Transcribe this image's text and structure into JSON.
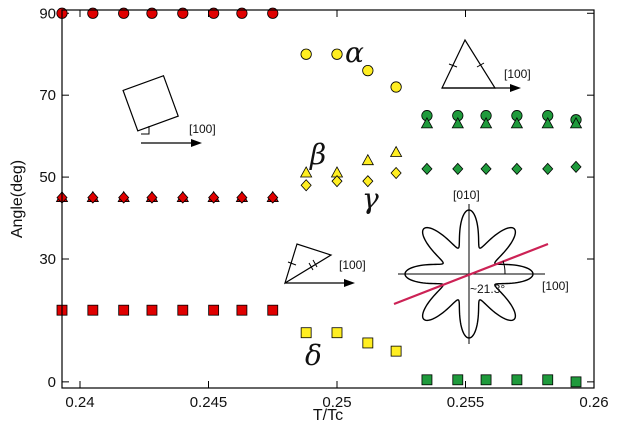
{
  "chart_data": {
    "type": "scatter",
    "xlabel": "T/Tc",
    "ylabel": "Angle(deg)",
    "xlim": [
      0.2393,
      0.26
    ],
    "ylim": [
      -1.5,
      90.8
    ],
    "xticks": [
      0.24,
      0.245,
      0.25,
      0.255,
      0.26
    ],
    "xtick_labels": [
      "0.24",
      "0.245",
      "0.25",
      "0.255",
      "0.26"
    ],
    "yticks": [
      0,
      30,
      50,
      70,
      90
    ],
    "ytick_labels": [
      "0",
      "30",
      "50",
      "70",
      "90"
    ],
    "grid": false,
    "colors": {
      "red": "#e00000",
      "yellow": "#ffee22",
      "green": "#1f9a3c",
      "curve": "#cc2255"
    },
    "series": [
      {
        "color": "red",
        "marker": "circle",
        "x": [
          0.2393,
          0.2405,
          0.2417,
          0.2428,
          0.244,
          0.2452,
          0.2463,
          0.2475
        ],
        "y": [
          90,
          90,
          90,
          90,
          90,
          90,
          90,
          90
        ]
      },
      {
        "color": "red",
        "marker": "triangle",
        "x": [
          0.2393,
          0.2405,
          0.2417,
          0.2428,
          0.244,
          0.2452,
          0.2463,
          0.2475
        ],
        "y": [
          45,
          45,
          45,
          45,
          45,
          45,
          45,
          45
        ]
      },
      {
        "color": "red",
        "marker": "diamond",
        "x": [
          0.2393,
          0.2405,
          0.2417,
          0.2428,
          0.244,
          0.2452,
          0.2463,
          0.2475
        ],
        "y": [
          45,
          45,
          45,
          45,
          45,
          45,
          45,
          45
        ]
      },
      {
        "color": "red",
        "marker": "square",
        "x": [
          0.2393,
          0.2405,
          0.2417,
          0.2428,
          0.244,
          0.2452,
          0.2463,
          0.2475
        ],
        "y": [
          17.5,
          17.5,
          17.5,
          17.5,
          17.5,
          17.5,
          17.5,
          17.5
        ]
      },
      {
        "color": "yellow",
        "marker": "circle",
        "x": [
          0.2488,
          0.25,
          0.2512,
          0.2523
        ],
        "y": [
          80,
          80,
          76,
          72
        ]
      },
      {
        "color": "yellow",
        "marker": "triangle",
        "x": [
          0.2488,
          0.25,
          0.2512,
          0.2523
        ],
        "y": [
          51,
          51,
          54,
          56
        ]
      },
      {
        "color": "yellow",
        "marker": "diamond",
        "x": [
          0.2488,
          0.25,
          0.2512,
          0.2523
        ],
        "y": [
          48,
          49,
          49,
          51
        ]
      },
      {
        "color": "yellow",
        "marker": "square",
        "x": [
          0.2488,
          0.25,
          0.2512,
          0.2523
        ],
        "y": [
          12,
          12,
          9.5,
          7.5
        ]
      },
      {
        "color": "green",
        "marker": "circle",
        "x": [
          0.2535,
          0.2547,
          0.2558,
          0.257,
          0.2582,
          0.2593
        ],
        "y": [
          65,
          65,
          65,
          65,
          65,
          64
        ]
      },
      {
        "color": "green",
        "marker": "triangle",
        "x": [
          0.2535,
          0.2547,
          0.2558,
          0.257,
          0.2582,
          0.2593
        ],
        "y": [
          63,
          63,
          63,
          63,
          63,
          63
        ]
      },
      {
        "color": "green",
        "marker": "diamond",
        "x": [
          0.2535,
          0.2547,
          0.2558,
          0.257,
          0.2582,
          0.2593
        ],
        "y": [
          52,
          52,
          52,
          52,
          52,
          52.5
        ]
      },
      {
        "color": "green",
        "marker": "square",
        "x": [
          0.2535,
          0.2547,
          0.2558,
          0.257,
          0.2582,
          0.2593
        ],
        "y": [
          0.5,
          0.5,
          0.5,
          0.5,
          0.5,
          0
        ]
      }
    ],
    "annotations": {
      "alpha": "α",
      "beta": "β",
      "gamma": "γ",
      "delta": "δ",
      "dir_square": "[100]",
      "dir_triangle_top": "[100]",
      "dir_triangle_mid": "[100]",
      "inset_y_label": "[010]",
      "inset_x_label": "[100]",
      "inset_angle": "~21.3°"
    }
  }
}
